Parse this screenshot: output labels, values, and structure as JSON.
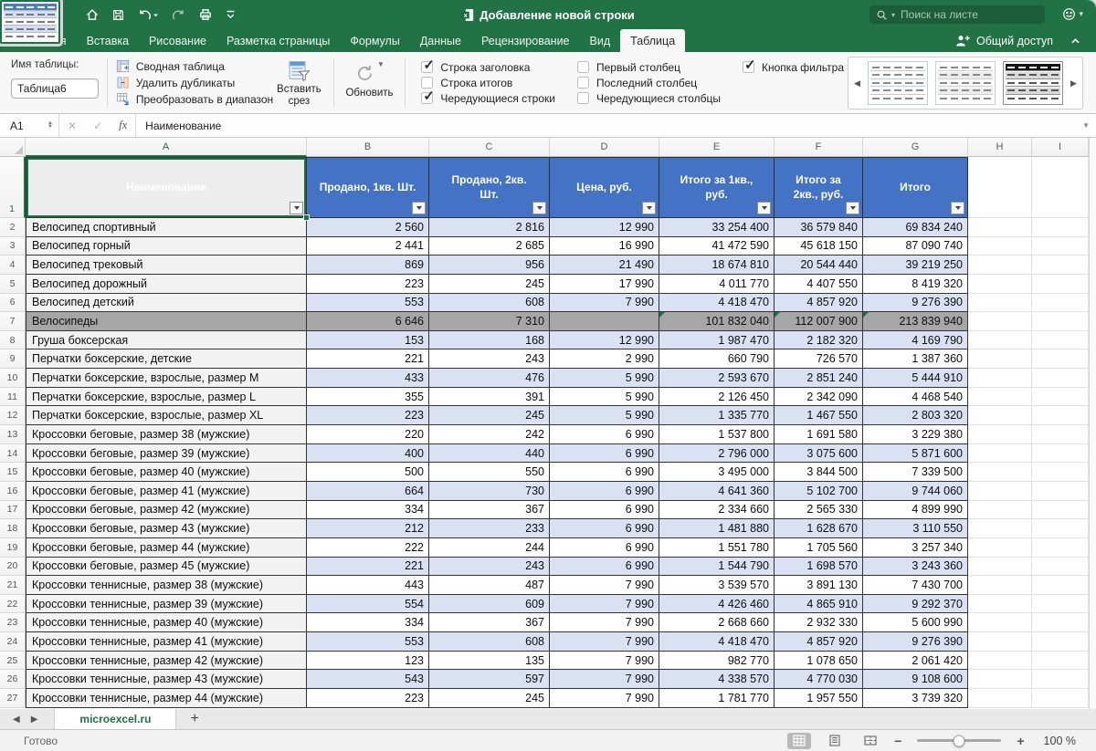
{
  "titlebar": {
    "title": "Добавление новой строки",
    "search_placeholder": "Поиск на листе"
  },
  "tabs": [
    "Главная",
    "Вставка",
    "Рисование",
    "Разметка страницы",
    "Формулы",
    "Данные",
    "Рецензирование",
    "Вид",
    "Таблица"
  ],
  "active_tab": "Таблица",
  "share_label": "Общий доступ",
  "ribbon": {
    "table_name_label": "Имя таблицы:",
    "table_name_value": "Таблица6",
    "tools": [
      "Сводная таблица",
      "Удалить дубликаты",
      "Преобразовать в диапазон"
    ],
    "insert_slicer": "Вставить срез",
    "refresh": "Обновить",
    "checkboxes": [
      {
        "label": "Строка заголовка",
        "checked": true
      },
      {
        "label": "Строка итогов",
        "checked": false
      },
      {
        "label": "Чередующиеся строки",
        "checked": true
      },
      {
        "label": "Первый столбец",
        "checked": false
      },
      {
        "label": "Последний столбец",
        "checked": false
      },
      {
        "label": "Чередующиеся столбцы",
        "checked": false
      },
      {
        "label": "Кнопка фильтра",
        "checked": true
      }
    ]
  },
  "formula_bar": {
    "name_box": "A1",
    "content": "Наименование"
  },
  "colors": {
    "accent_green": "#217346",
    "header_blue": "#4472C4",
    "band_blue": "#D9E1F2",
    "summary_gray": "#A6A6A6"
  },
  "sheet": {
    "column_letters": [
      "A",
      "B",
      "C",
      "D",
      "E",
      "F",
      "G",
      "H",
      "I"
    ],
    "selected_column": "A",
    "selected_row": 1,
    "headers": [
      "Наименование",
      "Продано, 1кв. Шт.",
      "Продано, 2кв. Шт.",
      "Цена, руб.",
      "Итого за 1кв., руб.",
      "Итого за 2кв., руб.",
      "Итого"
    ],
    "rows": [
      {
        "n": 2,
        "cells": [
          "Велосипед спортивный",
          "2 560",
          "2 816",
          "12 990",
          "33 254 400",
          "36 579 840",
          "69 834 240"
        ]
      },
      {
        "n": 3,
        "cells": [
          "Велосипед горный",
          "2 441",
          "2 685",
          "16 990",
          "41 472 590",
          "45 618 150",
          "87 090 740"
        ]
      },
      {
        "n": 4,
        "cells": [
          "Велосипед трековый",
          "869",
          "956",
          "21 490",
          "18 674 810",
          "20 544 440",
          "39 219 250"
        ]
      },
      {
        "n": 5,
        "cells": [
          "Велосипед дорожный",
          "223",
          "245",
          "17 990",
          "4 011 770",
          "4 407 550",
          "8 419 320"
        ]
      },
      {
        "n": 6,
        "cells": [
          "Велосипед детский",
          "553",
          "608",
          "7 990",
          "4 418 470",
          "4 857 920",
          "9 276 390"
        ]
      },
      {
        "n": 7,
        "cells": [
          "Велосипеды",
          "6 646",
          "7 310",
          "",
          "101 832 040",
          "112 007 900",
          "213 839 940"
        ],
        "summary": true,
        "errors": [
          4,
          5,
          6
        ]
      },
      {
        "n": 8,
        "cells": [
          "Груша боксерская",
          "153",
          "168",
          "12 990",
          "1 987 470",
          "2 182 320",
          "4 169 790"
        ]
      },
      {
        "n": 9,
        "cells": [
          "Перчатки боксерские, детские",
          "221",
          "243",
          "2 990",
          "660 790",
          "726 570",
          "1 387 360"
        ]
      },
      {
        "n": 10,
        "cells": [
          "Перчатки боксерские, взрослые, размер M",
          "433",
          "476",
          "5 990",
          "2 593 670",
          "2 851 240",
          "5 444 910"
        ]
      },
      {
        "n": 11,
        "cells": [
          "Перчатки боксерские, взрослые, размер L",
          "355",
          "391",
          "5 990",
          "2 126 450",
          "2 342 090",
          "4 468 540"
        ]
      },
      {
        "n": 12,
        "cells": [
          "Перчатки боксерские, взрослые, размер XL",
          "223",
          "245",
          "5 990",
          "1 335 770",
          "1 467 550",
          "2 803 320"
        ]
      },
      {
        "n": 13,
        "cells": [
          "Кроссовки беговые, размер 38 (мужские)",
          "220",
          "242",
          "6 990",
          "1 537 800",
          "1 691 580",
          "3 229 380"
        ]
      },
      {
        "n": 14,
        "cells": [
          "Кроссовки беговые, размер 39 (мужские)",
          "400",
          "440",
          "6 990",
          "2 796 000",
          "3 075 600",
          "5 871 600"
        ]
      },
      {
        "n": 15,
        "cells": [
          "Кроссовки беговые, размер 40 (мужские)",
          "500",
          "550",
          "6 990",
          "3 495 000",
          "3 844 500",
          "7 339 500"
        ]
      },
      {
        "n": 16,
        "cells": [
          "Кроссовки беговые, размер 41 (мужские)",
          "664",
          "730",
          "6 990",
          "4 641 360",
          "5 102 700",
          "9 744 060"
        ]
      },
      {
        "n": 17,
        "cells": [
          "Кроссовки беговые, размер 42 (мужские)",
          "334",
          "367",
          "6 990",
          "2 334 660",
          "2 565 330",
          "4 899 990"
        ]
      },
      {
        "n": 18,
        "cells": [
          "Кроссовки беговые, размер 43 (мужские)",
          "212",
          "233",
          "6 990",
          "1 481 880",
          "1 628 670",
          "3 110 550"
        ]
      },
      {
        "n": 19,
        "cells": [
          "Кроссовки беговые, размер 44 (мужские)",
          "222",
          "244",
          "6 990",
          "1 551 780",
          "1 705 560",
          "3 257 340"
        ]
      },
      {
        "n": 20,
        "cells": [
          "Кроссовки беговые, размер 45 (мужские)",
          "221",
          "243",
          "6 990",
          "1 544 790",
          "1 698 570",
          "3 243 360"
        ]
      },
      {
        "n": 21,
        "cells": [
          "Кроссовки теннисные, размер 38 (мужские)",
          "443",
          "487",
          "7 990",
          "3 539 570",
          "3 891 130",
          "7 430 700"
        ]
      },
      {
        "n": 22,
        "cells": [
          "Кроссовки теннисные, размер 39 (мужские)",
          "554",
          "609",
          "7 990",
          "4 426 460",
          "4 865 910",
          "9 292 370"
        ]
      },
      {
        "n": 23,
        "cells": [
          "Кроссовки теннисные, размер 40 (мужские)",
          "334",
          "367",
          "7 990",
          "2 668 660",
          "2 932 330",
          "5 600 990"
        ]
      },
      {
        "n": 24,
        "cells": [
          "Кроссовки теннисные, размер 41 (мужские)",
          "553",
          "608",
          "7 990",
          "4 418 470",
          "4 857 920",
          "9 276 390"
        ]
      },
      {
        "n": 25,
        "cells": [
          "Кроссовки теннисные, размер 42 (мужские)",
          "123",
          "135",
          "7 990",
          "982 770",
          "1 078 650",
          "2 061 420"
        ]
      },
      {
        "n": 26,
        "cells": [
          "Кроссовки теннисные, размер 43 (мужские)",
          "543",
          "597",
          "7 990",
          "4 338 570",
          "4 770 030",
          "9 108 600"
        ]
      },
      {
        "n": 27,
        "cells": [
          "Кроссовки теннисные, размер 44 (мужские)",
          "223",
          "245",
          "7 990",
          "1 781 770",
          "1 957 550",
          "3 739 320"
        ]
      }
    ]
  },
  "sheet_tabs": {
    "active": "microexcel.ru",
    "add": "+"
  },
  "status_bar": {
    "ready": "Готово",
    "zoom": "100 %"
  }
}
